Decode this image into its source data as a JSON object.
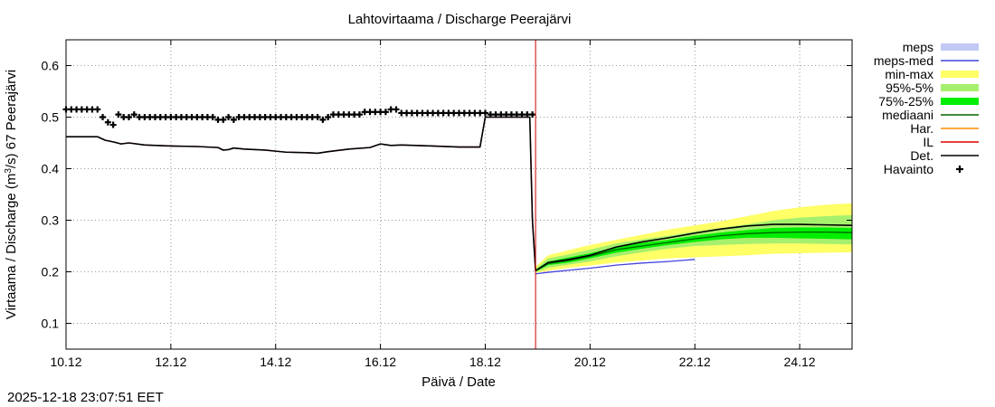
{
  "chart_data": {
    "type": "line",
    "title": "Lahtovirtaama / Discharge  Peerajärvi",
    "xlabel": "Päivä / Date",
    "ylabel": {
      "prefix": "Virtaama / Discharge (m",
      "sup": "3",
      "suffix": "/s)  67 Peerajärvi"
    },
    "xlim": [
      0,
      15
    ],
    "ylim": [
      0.05,
      0.65
    ],
    "x_unit": "days since 10.12 00:00",
    "xticks": [
      {
        "x": 0,
        "label": "10.12"
      },
      {
        "x": 2,
        "label": "12.12"
      },
      {
        "x": 4,
        "label": "14.12"
      },
      {
        "x": 6,
        "label": "16.12"
      },
      {
        "x": 8,
        "label": "18.12"
      },
      {
        "x": 10,
        "label": "20.12"
      },
      {
        "x": 12,
        "label": "22.12"
      },
      {
        "x": 14,
        "label": "24.12"
      }
    ],
    "yticks": [
      {
        "y": 0.1,
        "label": "0.1"
      },
      {
        "y": 0.2,
        "label": "0.2"
      },
      {
        "y": 0.3,
        "label": "0.3"
      },
      {
        "y": 0.4,
        "label": "0.4"
      },
      {
        "y": 0.5,
        "label": "0.5"
      },
      {
        "y": 0.6,
        "label": "0.6"
      }
    ],
    "grid": true,
    "forecast_start_x": 8.96,
    "legend": {
      "placement": "outside-right",
      "entries": [
        {
          "label": "meps",
          "color": "#c4c8f5",
          "style": "band"
        },
        {
          "label": "meps-med",
          "color": "#4444dd",
          "style": "line"
        },
        {
          "label": "min-max",
          "color": "#ffff66",
          "style": "band"
        },
        {
          "label": "95%-5%",
          "color": "#a6f06e",
          "style": "band"
        },
        {
          "label": "75%-25%",
          "color": "#00ee00",
          "style": "band"
        },
        {
          "label": "mediaani",
          "color": "#006400",
          "style": "line"
        },
        {
          "label": "Har.",
          "color": "#ff8c00",
          "style": "line"
        },
        {
          "label": "IL",
          "color": "#dd0000",
          "style": "line"
        },
        {
          "label": "Det.",
          "color": "#000000",
          "style": "line"
        },
        {
          "label": "Havainto",
          "color": "#000000",
          "style": "marker"
        }
      ]
    },
    "series": [
      {
        "name": "min-max",
        "type": "band",
        "color": "#ffff66",
        "x": [
          8.96,
          9.2,
          9.6,
          10.0,
          10.5,
          11.0,
          11.5,
          12.0,
          12.5,
          13.0,
          13.5,
          14.0,
          14.5,
          15.0
        ],
        "lower": [
          0.198,
          0.202,
          0.208,
          0.212,
          0.218,
          0.222,
          0.226,
          0.228,
          0.23,
          0.232,
          0.235,
          0.236,
          0.237,
          0.238
        ],
        "upper": [
          0.21,
          0.232,
          0.242,
          0.252,
          0.262,
          0.272,
          0.282,
          0.29,
          0.298,
          0.308,
          0.318,
          0.325,
          0.33,
          0.333
        ]
      },
      {
        "name": "95%-5%",
        "type": "band",
        "color": "#a6f06e",
        "x": [
          8.96,
          9.2,
          9.6,
          10.0,
          10.5,
          11.0,
          11.5,
          12.0,
          12.5,
          13.0,
          13.5,
          14.0,
          14.5,
          15.0
        ],
        "lower": [
          0.199,
          0.208,
          0.214,
          0.22,
          0.23,
          0.238,
          0.245,
          0.25,
          0.252,
          0.254,
          0.255,
          0.255,
          0.254,
          0.253
        ],
        "upper": [
          0.206,
          0.226,
          0.234,
          0.243,
          0.255,
          0.263,
          0.27,
          0.278,
          0.285,
          0.292,
          0.3,
          0.305,
          0.308,
          0.31
        ]
      },
      {
        "name": "75%-25%",
        "type": "band",
        "color": "#00ee00",
        "x": [
          8.96,
          9.2,
          9.6,
          10.0,
          10.5,
          11.0,
          11.5,
          12.0,
          12.5,
          13.0,
          13.5,
          14.0,
          14.5,
          15.0
        ],
        "lower": [
          0.2,
          0.213,
          0.218,
          0.226,
          0.237,
          0.245,
          0.252,
          0.258,
          0.263,
          0.266,
          0.266,
          0.265,
          0.264,
          0.263
        ],
        "upper": [
          0.204,
          0.22,
          0.228,
          0.236,
          0.248,
          0.256,
          0.262,
          0.27,
          0.276,
          0.281,
          0.285,
          0.286,
          0.286,
          0.285
        ]
      },
      {
        "name": "meps-med",
        "type": "line",
        "color": "#4444dd",
        "x": [
          8.96,
          9.2,
          9.6,
          10.0,
          10.5,
          11.0,
          11.5,
          12.0
        ],
        "y": [
          0.196,
          0.199,
          0.203,
          0.207,
          0.213,
          0.217,
          0.22,
          0.224
        ]
      },
      {
        "name": "mediaani",
        "type": "line",
        "color": "#006400",
        "x": [
          8.96,
          9.2,
          9.6,
          10.0,
          10.5,
          11.0,
          11.5,
          12.0,
          12.5,
          13.0,
          13.5,
          14.0,
          14.5,
          15.0
        ],
        "y": [
          0.202,
          0.216,
          0.222,
          0.23,
          0.243,
          0.25,
          0.257,
          0.264,
          0.27,
          0.274,
          0.276,
          0.277,
          0.277,
          0.276
        ]
      },
      {
        "name": "IL",
        "type": "line",
        "color": "#dd0000",
        "x": [
          0,
          0.6,
          0.75,
          0.9,
          1.05,
          1.2,
          1.5,
          2.0,
          2.5,
          2.9,
          3.0,
          3.1,
          3.2,
          3.4,
          3.8,
          4.0,
          4.2,
          4.6,
          4.8,
          5.0,
          5.4,
          5.8,
          6.0,
          6.2,
          6.4,
          7.0,
          7.5,
          7.9,
          8.0,
          8.85,
          8.9,
          8.96
        ],
        "y": [
          0.462,
          0.462,
          0.455,
          0.452,
          0.448,
          0.45,
          0.446,
          0.444,
          0.443,
          0.441,
          0.436,
          0.437,
          0.44,
          0.438,
          0.436,
          0.434,
          0.432,
          0.431,
          0.43,
          0.433,
          0.438,
          0.441,
          0.448,
          0.445,
          0.446,
          0.444,
          0.442,
          0.442,
          0.5,
          0.5,
          0.3,
          0.202
        ]
      },
      {
        "name": "Det.",
        "type": "line",
        "color": "#000000",
        "x": [
          0,
          0.6,
          0.75,
          0.9,
          1.05,
          1.2,
          1.5,
          2.0,
          2.5,
          2.9,
          3.0,
          3.1,
          3.2,
          3.4,
          3.8,
          4.0,
          4.2,
          4.6,
          4.8,
          5.0,
          5.4,
          5.8,
          6.0,
          6.2,
          6.4,
          7.0,
          7.5,
          7.9,
          8.0,
          8.85,
          8.9,
          8.96,
          9.2,
          9.6,
          10.0,
          10.5,
          11.0,
          11.5,
          12.0,
          12.5,
          13.0,
          13.5,
          14.0,
          14.5,
          15.0
        ],
        "y": [
          0.462,
          0.462,
          0.455,
          0.452,
          0.448,
          0.45,
          0.446,
          0.444,
          0.443,
          0.441,
          0.436,
          0.437,
          0.44,
          0.438,
          0.436,
          0.434,
          0.432,
          0.431,
          0.43,
          0.433,
          0.438,
          0.441,
          0.448,
          0.445,
          0.446,
          0.444,
          0.442,
          0.442,
          0.5,
          0.5,
          0.3,
          0.202,
          0.218,
          0.224,
          0.232,
          0.248,
          0.258,
          0.266,
          0.275,
          0.283,
          0.289,
          0.292,
          0.292,
          0.291,
          0.29
        ]
      },
      {
        "name": "Havainto",
        "type": "scatter",
        "marker": "+",
        "color": "#000000",
        "x": [
          0,
          0.1,
          0.2,
          0.3,
          0.4,
          0.5,
          0.6,
          0.7,
          0.8,
          0.9,
          1.0,
          1.1,
          1.2,
          1.3,
          1.4,
          1.5,
          1.6,
          1.7,
          1.8,
          1.9,
          2.0,
          2.1,
          2.2,
          2.3,
          2.4,
          2.5,
          2.6,
          2.7,
          2.8,
          2.9,
          3.0,
          3.1,
          3.2,
          3.3,
          3.4,
          3.5,
          3.6,
          3.7,
          3.8,
          3.9,
          4.0,
          4.1,
          4.2,
          4.3,
          4.4,
          4.5,
          4.6,
          4.7,
          4.8,
          4.9,
          5.0,
          5.1,
          5.2,
          5.3,
          5.4,
          5.5,
          5.6,
          5.7,
          5.8,
          5.9,
          6.0,
          6.1,
          6.2,
          6.3,
          6.4,
          6.5,
          6.6,
          6.7,
          6.8,
          6.9,
          7.0,
          7.1,
          7.2,
          7.3,
          7.4,
          7.5,
          7.6,
          7.7,
          7.8,
          7.9,
          8.0,
          8.1,
          8.2,
          8.3,
          8.4,
          8.5,
          8.6,
          8.7,
          8.8,
          8.9
        ],
        "y": [
          0.515,
          0.515,
          0.515,
          0.515,
          0.515,
          0.515,
          0.515,
          0.5,
          0.49,
          0.485,
          0.505,
          0.5,
          0.5,
          0.505,
          0.5,
          0.5,
          0.5,
          0.5,
          0.5,
          0.5,
          0.5,
          0.5,
          0.5,
          0.5,
          0.5,
          0.5,
          0.5,
          0.5,
          0.5,
          0.495,
          0.495,
          0.5,
          0.495,
          0.5,
          0.5,
          0.5,
          0.5,
          0.5,
          0.5,
          0.5,
          0.5,
          0.5,
          0.5,
          0.5,
          0.5,
          0.5,
          0.5,
          0.5,
          0.5,
          0.495,
          0.5,
          0.505,
          0.505,
          0.505,
          0.505,
          0.505,
          0.505,
          0.51,
          0.51,
          0.51,
          0.51,
          0.51,
          0.515,
          0.515,
          0.508,
          0.508,
          0.508,
          0.508,
          0.508,
          0.508,
          0.508,
          0.508,
          0.508,
          0.508,
          0.508,
          0.508,
          0.508,
          0.508,
          0.508,
          0.508,
          0.508,
          0.505,
          0.505,
          0.505,
          0.505,
          0.505,
          0.505,
          0.505,
          0.505,
          0.505
        ]
      }
    ]
  },
  "footer": {
    "timestamp": "2025-12-18 23:07:51 EET"
  }
}
